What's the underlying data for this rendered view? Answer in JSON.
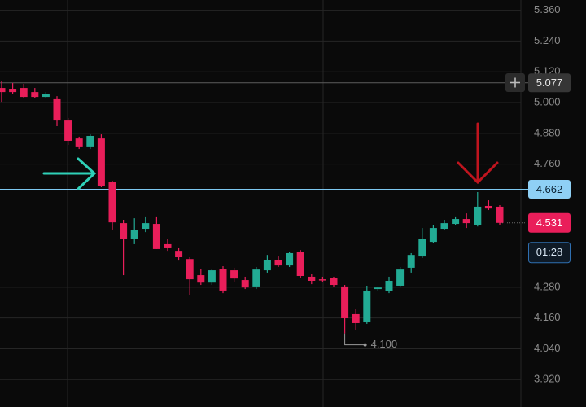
{
  "chart_data": {
    "type": "candlestick",
    "open": [
      5.057,
      5.054,
      5.057,
      5.041,
      5.022,
      5.013,
      4.93,
      4.86,
      4.829,
      4.86,
      4.689,
      4.53,
      4.47,
      4.508,
      4.527,
      4.448,
      4.422,
      4.39,
      4.327,
      4.298,
      4.352,
      4.346,
      4.308,
      4.283,
      4.346,
      4.387,
      4.365,
      4.419,
      4.321,
      4.311,
      4.317,
      4.283,
      4.175,
      4.143,
      4.273,
      4.264,
      4.286,
      4.356,
      4.4,
      4.457,
      4.508,
      4.527,
      4.546,
      4.524,
      4.597,
      4.594
    ],
    "high": [
      5.083,
      5.076,
      5.073,
      5.057,
      5.041,
      5.025,
      4.94,
      4.867,
      4.876,
      4.876,
      4.695,
      4.543,
      4.549,
      4.556,
      4.556,
      4.47,
      4.432,
      4.397,
      4.352,
      4.352,
      4.362,
      4.356,
      4.321,
      4.359,
      4.406,
      4.4,
      4.419,
      4.425,
      4.333,
      4.321,
      4.321,
      4.289,
      4.194,
      4.286,
      4.283,
      4.321,
      4.359,
      4.413,
      4.511,
      4.524,
      4.543,
      4.556,
      4.568,
      4.651,
      4.619,
      4.6
    ],
    "low": [
      5.003,
      5.032,
      5.019,
      5.016,
      5.016,
      4.908,
      4.835,
      4.819,
      4.819,
      4.67,
      4.505,
      4.327,
      4.448,
      4.495,
      4.429,
      4.422,
      4.384,
      4.251,
      4.289,
      4.289,
      4.257,
      4.302,
      4.273,
      4.273,
      4.337,
      4.359,
      4.359,
      4.317,
      4.292,
      4.302,
      4.283,
      4.1,
      4.114,
      4.137,
      4.264,
      4.257,
      4.279,
      4.337,
      4.394,
      4.451,
      4.502,
      4.521,
      4.511,
      4.517,
      4.581,
      4.521
    ],
    "close": [
      5.041,
      5.041,
      5.022,
      5.022,
      5.032,
      4.93,
      4.851,
      4.829,
      4.87,
      4.676,
      4.533,
      4.47,
      4.502,
      4.53,
      4.429,
      4.432,
      4.397,
      4.311,
      4.298,
      4.346,
      4.267,
      4.314,
      4.279,
      4.349,
      4.387,
      4.365,
      4.413,
      4.324,
      4.305,
      4.308,
      4.289,
      4.159,
      4.14,
      4.267,
      4.279,
      4.305,
      4.349,
      4.406,
      4.47,
      4.511,
      4.53,
      4.546,
      4.53,
      4.594,
      4.587,
      4.531
    ],
    "up_color": "#22ab94",
    "down_color": "#e91e5a",
    "ylim": [
      3.813,
      5.4
    ],
    "yticks": [
      {
        "value": 5.36,
        "label": "5.360"
      },
      {
        "value": 5.24,
        "label": "5.240"
      },
      {
        "value": 5.12,
        "label": "5.120"
      },
      {
        "value": 5.0,
        "label": "5.000"
      },
      {
        "value": 4.88,
        "label": "4.880"
      },
      {
        "value": 4.76,
        "label": "4.760"
      },
      {
        "value": 4.28,
        "label": "4.280"
      },
      {
        "value": 4.16,
        "label": "4.160"
      },
      {
        "value": 4.04,
        "label": "4.040"
      },
      {
        "value": 3.92,
        "label": "3.920"
      }
    ],
    "grid": true,
    "price_lines": [
      {
        "value": 5.077,
        "color": "#5c5c5c",
        "label_bg": "#363636",
        "label_color": "#e6e6e6"
      },
      {
        "value": 4.662,
        "color": "#7ec8f0",
        "label_bg": "#8fd0f5",
        "label_color": "#0b2233"
      }
    ],
    "last_price": 4.531,
    "countdown": "01:28",
    "low_marker": {
      "value": 4.1,
      "label": "4.100",
      "index": 31
    }
  }
}
